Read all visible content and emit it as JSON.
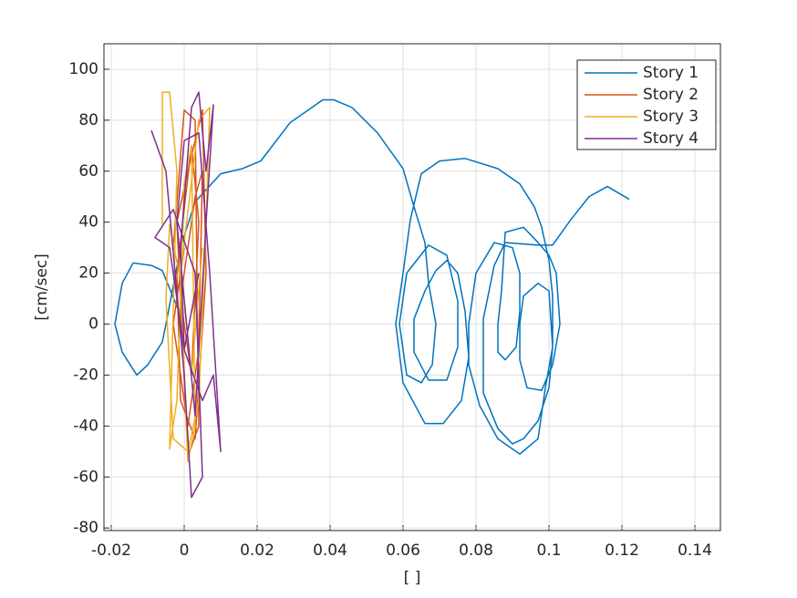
{
  "chart_data": {
    "type": "line",
    "xlabel": "[ ]",
    "ylabel": "[cm/sec]",
    "xlim": [
      -0.022,
      0.147
    ],
    "ylim": [
      -81,
      110
    ],
    "xticks": [
      -0.02,
      0,
      0.02,
      0.04,
      0.06,
      0.08,
      0.1,
      0.12,
      0.14
    ],
    "yticks": [
      -80,
      -60,
      -40,
      -20,
      0,
      20,
      40,
      60,
      80,
      100
    ],
    "grid": true,
    "legend": "northeast",
    "series": [
      {
        "name": "Story 1",
        "color": "#0072BD",
        "x": [
          0.0,
          -0.006,
          -0.009,
          -0.014,
          -0.017,
          -0.019,
          -0.017,
          -0.013,
          -0.01,
          -0.006,
          -0.005,
          -0.001,
          0.003,
          0.01,
          0.016,
          0.021,
          0.029,
          0.038,
          0.041,
          0.046,
          0.053,
          0.06,
          0.063,
          0.066,
          0.067,
          0.069,
          0.068,
          0.065,
          0.061,
          0.059,
          0.061,
          0.067,
          0.072,
          0.075,
          0.075,
          0.072,
          0.067,
          0.063,
          0.063,
          0.066,
          0.069,
          0.072,
          0.075,
          0.077,
          0.078,
          0.076,
          0.071,
          0.066,
          0.06,
          0.058,
          0.06,
          0.062,
          0.065,
          0.07,
          0.077,
          0.086,
          0.092,
          0.096,
          0.098,
          0.1,
          0.101,
          0.101,
          0.099,
          0.097,
          0.092,
          0.086,
          0.081,
          0.078,
          0.078,
          0.08,
          0.085,
          0.09,
          0.092,
          0.092,
          0.091,
          0.088,
          0.086,
          0.086,
          0.087,
          0.088,
          0.093,
          0.097,
          0.1,
          0.102,
          0.103,
          0.101,
          0.098,
          0.094,
          0.092,
          0.092,
          0.093,
          0.097,
          0.1,
          0.101,
          0.1,
          0.097,
          0.093,
          0.09,
          0.086,
          0.082,
          0.082,
          0.085,
          0.088,
          0.097,
          0.101,
          0.106,
          0.111,
          0.116,
          0.122
        ],
        "values": [
          0,
          21,
          23,
          24,
          16,
          0,
          -11,
          -20,
          -16,
          -7,
          0,
          30,
          48,
          59,
          61,
          64,
          79,
          88,
          88,
          85,
          75,
          61,
          46,
          32,
          16,
          0,
          -16,
          -23,
          -20,
          0,
          20,
          31,
          27,
          9,
          -9,
          -22,
          -22,
          -11,
          2,
          13,
          21,
          25,
          20,
          5,
          -13,
          -30,
          -39,
          -39,
          -23,
          0,
          20,
          41,
          59,
          64,
          65,
          61,
          55,
          46,
          38,
          25,
          11,
          -9,
          -25,
          -45,
          -51,
          -45,
          -32,
          -16,
          0,
          20,
          32,
          30,
          20,
          5,
          -9,
          -14,
          -11,
          0,
          13,
          36,
          38,
          32,
          27,
          20,
          0,
          -16,
          -26,
          -25,
          -14,
          0,
          11,
          16,
          13,
          -9,
          -25,
          -38,
          -45,
          -47,
          -41,
          -27,
          2,
          23,
          32,
          31,
          31,
          41,
          50,
          54,
          49
        ]
      },
      {
        "name": "Story 2",
        "color": "#D95319",
        "x": [
          -0.003,
          0.0,
          0.003,
          0.004,
          0.001,
          -0.002,
          0.001,
          0.005,
          0.006,
          0.003,
          -0.001,
          -0.002,
          0.002,
          0.004,
          0.002,
          -0.001,
          0.003,
          0.005,
          0.004,
          0.001,
          -0.003,
          0.0
        ],
        "values": [
          30,
          84,
          80,
          -40,
          -52,
          40,
          60,
          84,
          20,
          -45,
          -30,
          20,
          70,
          40,
          -20,
          10,
          50,
          60,
          -10,
          -40,
          0,
          30
        ]
      },
      {
        "name": "Story 3",
        "color": "#EDB120",
        "x": [
          -0.006,
          -0.006,
          -0.004,
          -0.002,
          -0.004,
          -0.002,
          0.0,
          0.002,
          0.003,
          0.001,
          -0.001,
          0.004,
          0.007,
          0.006,
          0.004,
          0.001,
          -0.003,
          -0.005,
          -0.004,
          0.0,
          0.002,
          0.005
        ],
        "values": [
          39,
          91,
          91,
          60,
          -49,
          -30,
          55,
          70,
          -40,
          -54,
          20,
          80,
          85,
          40,
          -30,
          -50,
          -45,
          10,
          39,
          10,
          -20,
          30
        ]
      },
      {
        "name": "Story 4",
        "color": "#7E2F8E",
        "x": [
          -0.009,
          -0.005,
          0.0,
          0.002,
          0.005,
          0.003,
          -0.003,
          -0.008,
          -0.004,
          0.0,
          0.005,
          0.008,
          0.01,
          0.007,
          0.004,
          0.0,
          -0.002,
          0.003,
          0.006,
          0.008,
          0.006,
          0.004,
          0.002,
          -0.001,
          0.0,
          0.004
        ],
        "values": [
          76,
          60,
          -20,
          -68,
          -60,
          20,
          45,
          34,
          30,
          -10,
          -30,
          -20,
          -50,
          20,
          75,
          72,
          40,
          -36,
          40,
          86,
          60,
          91,
          85,
          30,
          -10,
          20
        ]
      }
    ]
  }
}
